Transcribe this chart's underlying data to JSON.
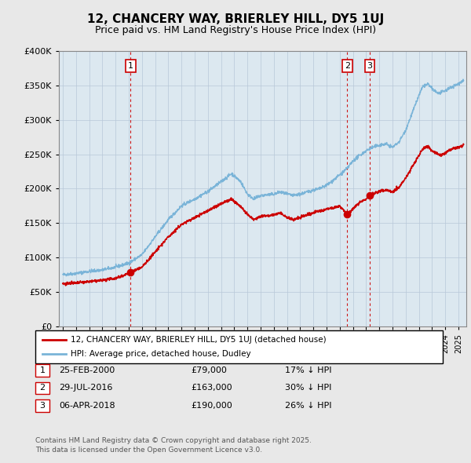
{
  "title": "12, CHANCERY WAY, BRIERLEY HILL, DY5 1UJ",
  "subtitle": "Price paid vs. HM Land Registry's House Price Index (HPI)",
  "legend_line1": "12, CHANCERY WAY, BRIERLEY HILL, DY5 1UJ (detached house)",
  "legend_line2": "HPI: Average price, detached house, Dudley",
  "footer1": "Contains HM Land Registry data © Crown copyright and database right 2025.",
  "footer2": "This data is licensed under the Open Government Licence v3.0.",
  "transactions": [
    {
      "num": 1,
      "date": "25-FEB-2000",
      "price": "£79,000",
      "pct": "17% ↓ HPI",
      "year": 2000.14
    },
    {
      "num": 2,
      "date": "29-JUL-2016",
      "price": "£163,000",
      "pct": "30% ↓ HPI",
      "year": 2016.58
    },
    {
      "num": 3,
      "date": "06-APR-2018",
      "price": "£190,000",
      "pct": "26% ↓ HPI",
      "year": 2018.27
    }
  ],
  "sale_prices": [
    79000,
    163000,
    190000
  ],
  "sale_years": [
    2000.14,
    2016.58,
    2018.27
  ],
  "hpi_color": "#7ab4d8",
  "price_color": "#cc0000",
  "vline_color": "#cc0000",
  "ylim_max": 400000,
  "xlim_start": 1994.7,
  "xlim_end": 2025.6,
  "background_color": "#e8e8e8",
  "plot_bg_color": "#dce8f0",
  "grid_color": "#b8c8d8"
}
